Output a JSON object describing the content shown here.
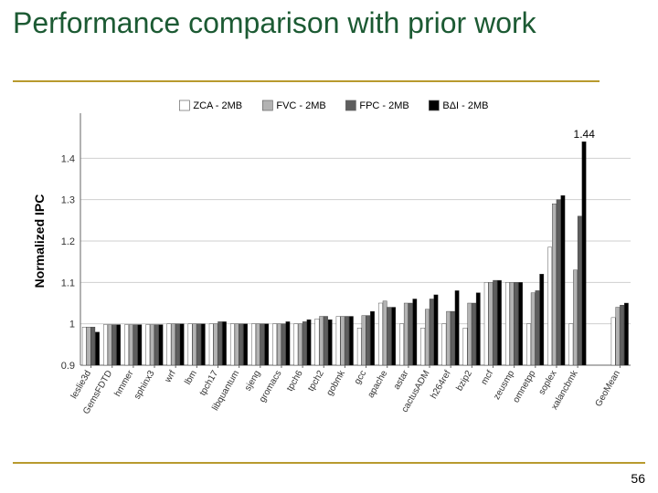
{
  "slide": {
    "title": "Performance comparison with prior work",
    "page_number": "56",
    "title_color": "#1c5a33",
    "rule_color": "#b89a2e",
    "background_color": "#ffffff"
  },
  "chart": {
    "type": "bar-grouped",
    "ylabel": "Normalized IPC",
    "ylim": [
      0.9,
      1.5
    ],
    "yticks": [
      0.9,
      1.0,
      1.1,
      1.2,
      1.3,
      1.4
    ],
    "grid_color": "#cfcfcf",
    "axis_color": "#666666",
    "label_fontsize": 10,
    "tick_fontsize": 11,
    "ytitle_fontsize": 14,
    "annotation": {
      "text": "1.44",
      "category": "xalancbmk",
      "series": 3
    },
    "legend": {
      "items": [
        {
          "label": "ZCA - 2MB",
          "fill": "#ffffff"
        },
        {
          "label": "FVC - 2MB",
          "fill": "#b3b3b3"
        },
        {
          "label": "FPC - 2MB",
          "fill": "#5e5e5e"
        },
        {
          "label": "BΔI - 2MB",
          "fill": "#000000"
        }
      ]
    },
    "series_colors": [
      "#ffffff",
      "#b3b3b3",
      "#5e5e5e",
      "#000000"
    ],
    "bar_border": "#333333",
    "categories": [
      "leslie3d",
      "GemsFDTD",
      "hmmer",
      "sphinx3",
      "wrf",
      "lbm",
      "tpch17",
      "libquantum",
      "sjeng",
      "gromacs",
      "tpch6",
      "tpch2",
      "gobmk",
      "gcc",
      "apache",
      "astar",
      "cactusADM",
      "h264ref",
      "bzip2",
      "mcf",
      "zeusmp",
      "omnetpp",
      "soplex",
      "xalancbmk",
      "GeoMean"
    ],
    "values": [
      [
        0.992,
        0.992,
        0.992,
        0.98
      ],
      [
        0.998,
        0.998,
        0.998,
        0.998
      ],
      [
        0.998,
        0.998,
        0.998,
        0.998
      ],
      [
        0.998,
        0.998,
        0.998,
        0.998
      ],
      [
        1.0,
        1.0,
        1.0,
        1.0
      ],
      [
        1.0,
        1.0,
        1.0,
        1.0
      ],
      [
        1.0,
        1.0,
        1.005,
        1.005
      ],
      [
        1.0,
        1.0,
        1.0,
        1.0
      ],
      [
        1.0,
        1.0,
        1.0,
        1.0
      ],
      [
        1.0,
        1.0,
        1.0,
        1.005
      ],
      [
        1.0,
        1.0,
        1.005,
        1.01
      ],
      [
        1.012,
        1.018,
        1.018,
        1.01
      ],
      [
        1.018,
        1.018,
        1.018,
        1.018
      ],
      [
        0.99,
        1.02,
        1.02,
        1.03
      ],
      [
        1.05,
        1.055,
        1.04,
        1.04
      ],
      [
        1.0,
        1.05,
        1.05,
        1.06
      ],
      [
        0.99,
        1.035,
        1.06,
        1.07
      ],
      [
        1.0,
        1.03,
        1.03,
        1.08
      ],
      [
        0.99,
        1.05,
        1.05,
        1.075
      ],
      [
        1.1,
        1.1,
        1.105,
        1.105
      ],
      [
        1.1,
        1.1,
        1.1,
        1.1
      ],
      [
        1.0,
        1.075,
        1.08,
        1.12
      ],
      [
        1.185,
        1.29,
        1.3,
        1.31
      ],
      [
        1.0,
        1.13,
        1.26,
        1.44
      ],
      [
        1.015,
        1.04,
        1.045,
        1.05
      ]
    ],
    "gap_after_index": 23
  }
}
